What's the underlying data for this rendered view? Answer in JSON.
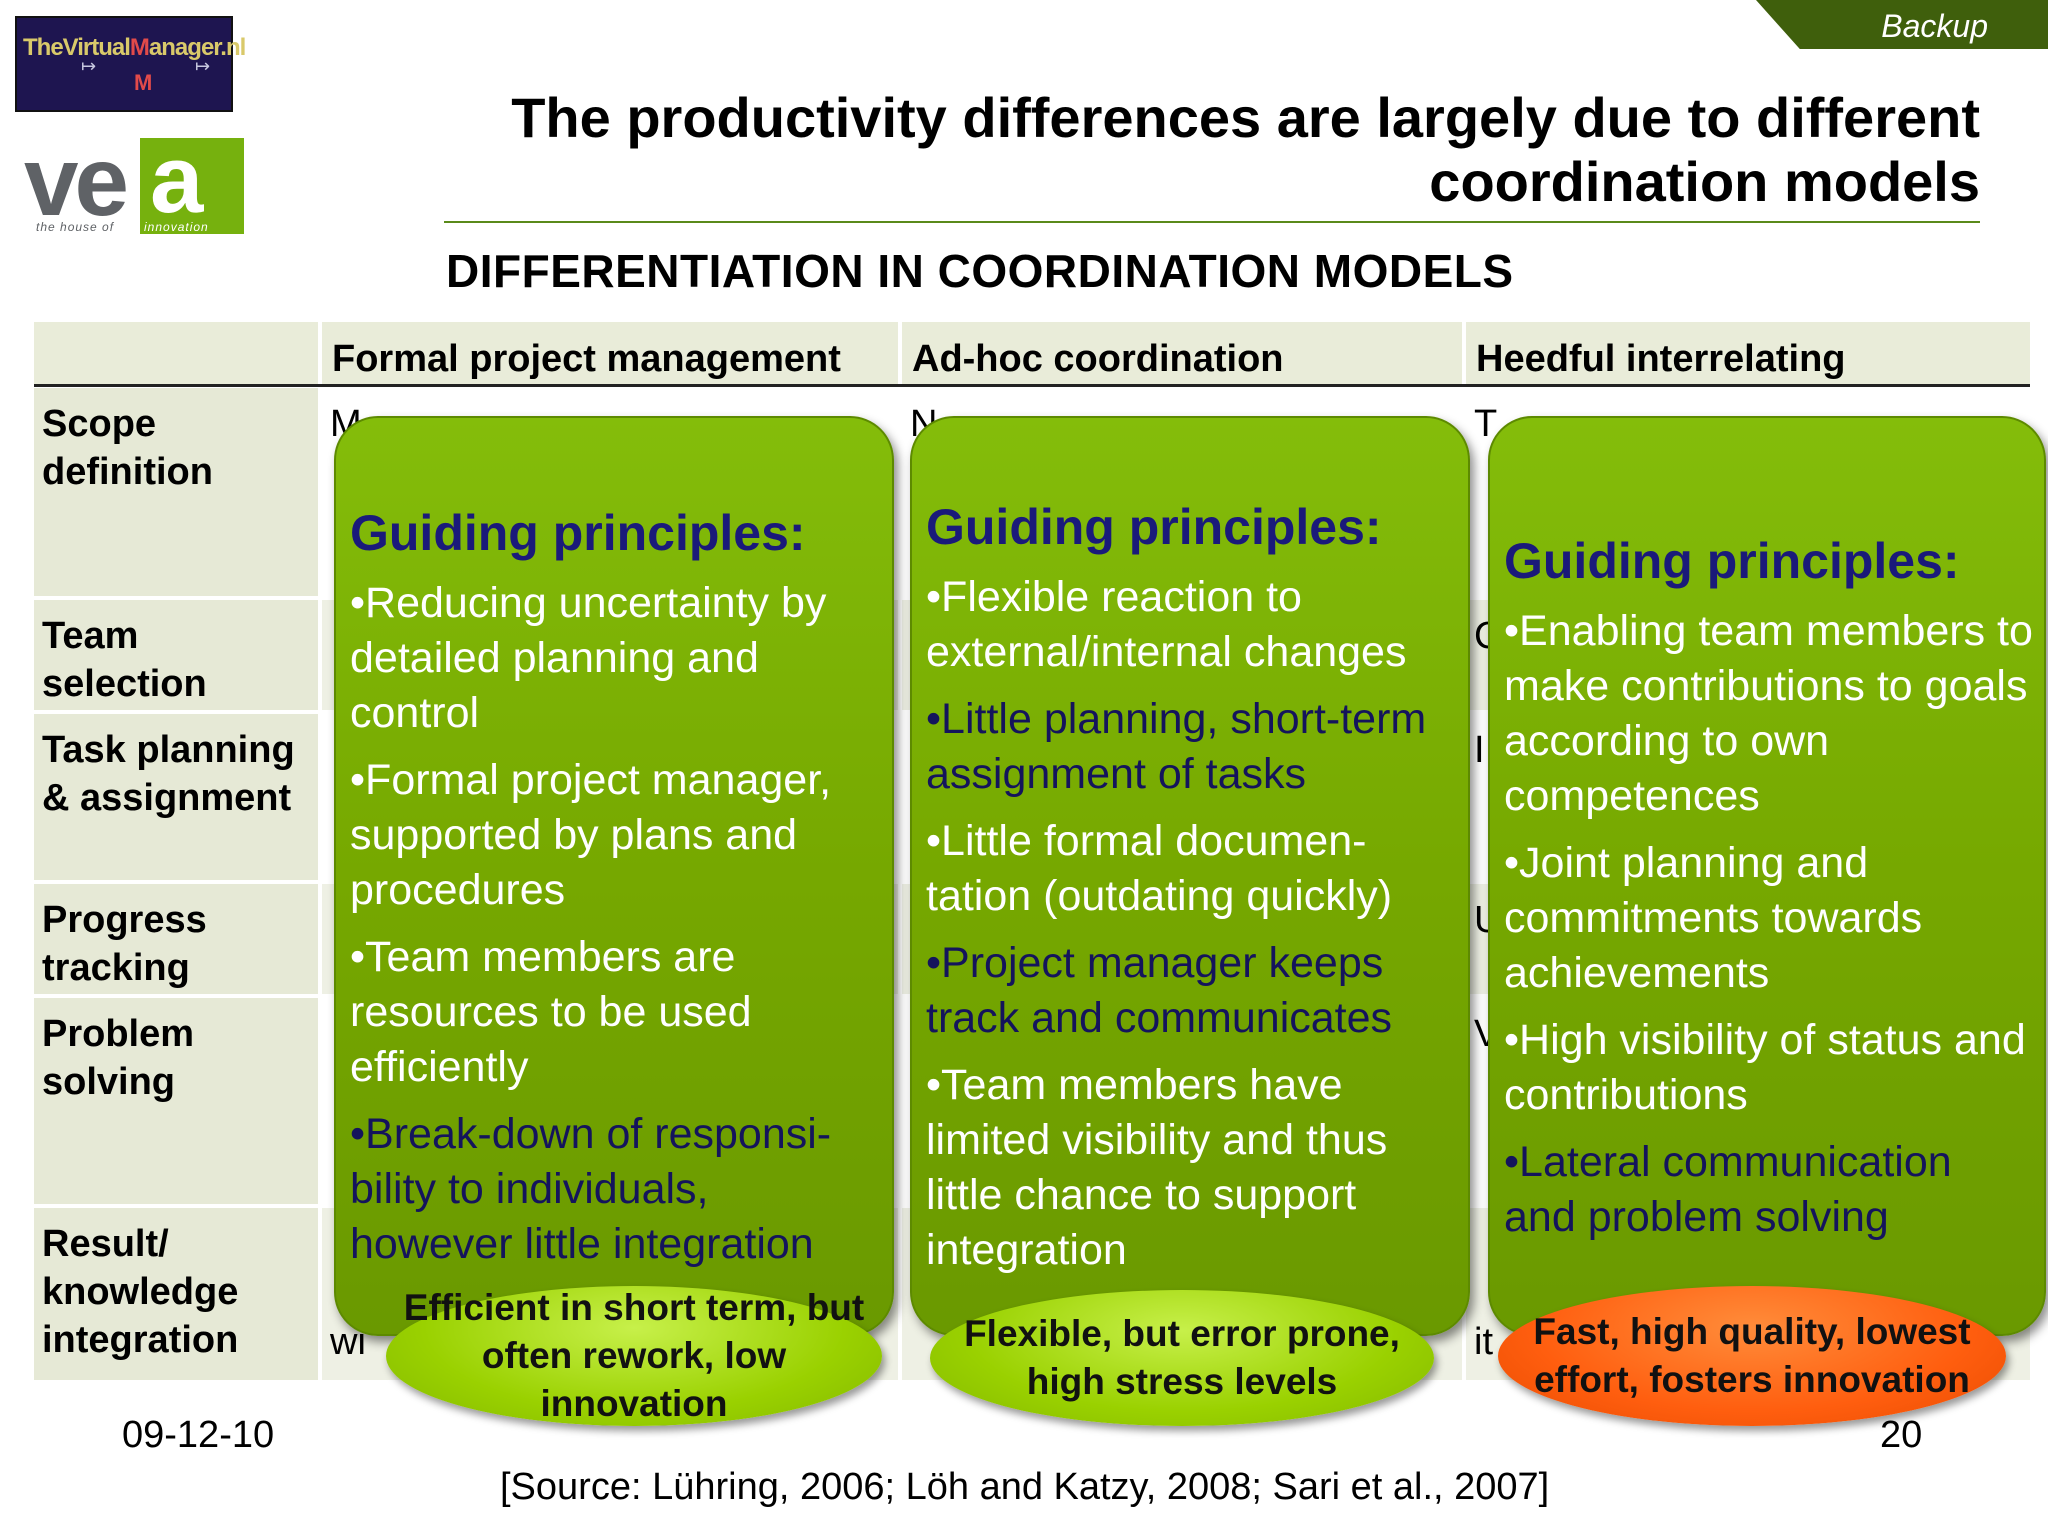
{
  "corner_tab": "Backup",
  "logos": {
    "tvm": {
      "part1": "TheVirtual",
      "part2": "M",
      "part3": "anager.nl",
      "sub": "M"
    },
    "vea": {
      "letters_gray": "ve",
      "letter_box": "a",
      "tagline_left": "the house of",
      "tagline_right": "innovation"
    }
  },
  "title": "The productivity differences are largely due to different coordination models",
  "subtitle": "DIFFERENTIATION IN COORDINATION MODELS",
  "table": {
    "columns": [
      "",
      "Formal project management",
      "Ad-hoc coordination",
      "Heedful interrelating"
    ],
    "rows": [
      {
        "label": "Scope definition",
        "cells": [
          "M",
          "N",
          "T"
        ]
      },
      {
        "label": "Team selection",
        "cells": [
          "",
          "",
          "C"
        ]
      },
      {
        "label": "Task planning & assignment",
        "cells": [
          "",
          "",
          "I"
        ]
      },
      {
        "label": "Progress tracking",
        "cells": [
          "",
          "",
          "U"
        ]
      },
      {
        "label": "Problem solving",
        "cells": [
          "",
          "",
          "V"
        ]
      },
      {
        "label": "Result/ knowledge integration",
        "cells": [
          "wi",
          "",
          "it"
        ]
      }
    ]
  },
  "panels": [
    {
      "title": "Guiding principles:",
      "items": [
        "•Reducing uncertainty by detailed planning and control",
        "•Formal project manager, supported by plans and procedures",
        "•Team members are resources to be used efficiently",
        "•Break-down of responsi-bility to individuals, however little integration"
      ],
      "dark_items": [
        3
      ]
    },
    {
      "title": "Guiding principles:",
      "items": [
        "•Flexible reaction to external/internal changes",
        "•Little planning, short-term assignment of tasks",
        "•Little formal documen-tation (outdating quickly)",
        "•Project manager keeps track and communicates",
        "•Team members have limited visibility and thus little chance to support integration"
      ],
      "dark_items": [
        1,
        3
      ]
    },
    {
      "title": "Guiding principles:",
      "items": [
        "•Enabling team members to make contributions to goals according to own competences",
        "•Joint planning and commitments towards achievements",
        "•High visibility of status and contributions",
        "•Lateral communication and problem solving"
      ],
      "dark_items": [
        3
      ]
    }
  ],
  "outcomes": [
    {
      "text": "Efficient in short term, but often rework, low innovation",
      "color": "green"
    },
    {
      "text": "Flexible, but error prone, high stress levels",
      "color": "green"
    },
    {
      "text": "Fast, high quality, lowest effort, fosters innovation",
      "color": "orange"
    }
  ],
  "footer": {
    "date": "09-12-10",
    "page": "20",
    "source": "[Source: Lühring, 2006; Löh and Katzy, 2008; Sari et al., 2007]"
  },
  "colors": {
    "panel_green": "#76a800",
    "title_blue": "#1a1a7a",
    "oval_green": "#9ad100",
    "oval_orange": "#ff5e0f",
    "tab_green": "#3f5f0c"
  }
}
